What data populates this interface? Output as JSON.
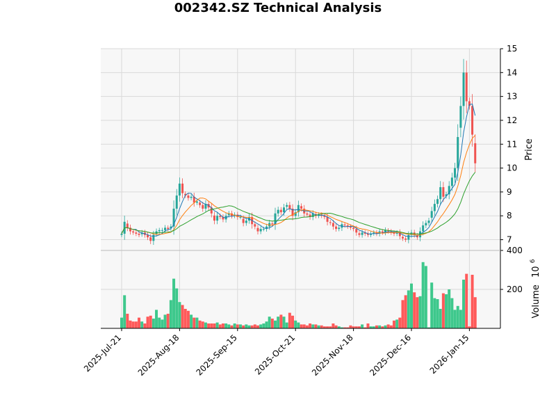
{
  "chart_data": {
    "type": "candlestick",
    "title": "002342.SZ Technical Analysis",
    "price_ylabel": "Price",
    "volume_ylabel": "Volume",
    "volume_multiplier_label": "10",
    "volume_multiplier_exp": "6",
    "price_ylim": [
      6.55,
      15.0
    ],
    "price_ticks": [
      7,
      8,
      9,
      10,
      11,
      12,
      13,
      14,
      15
    ],
    "volume_ylim": [
      0,
      400
    ],
    "volume_ticks": [
      200,
      400
    ],
    "x_ticks": [
      {
        "label": "2025-Jul-21",
        "index": 0
      },
      {
        "label": "2025-Aug-18",
        "index": 20
      },
      {
        "label": "2025-Sep-15",
        "index": 40
      },
      {
        "label": "2025-Oct-21",
        "index": 60
      },
      {
        "label": "2025-Nov-18",
        "index": 80
      },
      {
        "label": "2025-Dec-16",
        "index": 100
      },
      {
        "label": "2026-Jan-15",
        "index": 120
      }
    ],
    "colors": {
      "up": "#26a69a",
      "down": "#ef5350",
      "up_vol": "#3ec88c",
      "down_vol": "#ff5a5a",
      "ma_fast": "#1f77b4",
      "ma_mid": "#ff7f0e",
      "ma_slow": "#2ca02c",
      "panel_bg": "#f7f7f7",
      "grid": "#d9d9d9"
    },
    "closes": [
      7.25,
      7.75,
      7.5,
      7.35,
      7.3,
      7.25,
      7.2,
      7.3,
      7.2,
      7.1,
      6.95,
      7.2,
      7.35,
      7.4,
      7.4,
      7.5,
      7.45,
      7.55,
      8.3,
      8.85,
      9.35,
      8.95,
      8.85,
      8.75,
      8.8,
      8.55,
      8.6,
      8.45,
      8.3,
      8.5,
      8.35,
      8.1,
      7.8,
      8.0,
      7.95,
      7.85,
      8.0,
      8.1,
      8.0,
      8.05,
      7.95,
      7.95,
      7.7,
      7.8,
      7.95,
      7.65,
      7.55,
      7.35,
      7.45,
      7.45,
      7.55,
      7.7,
      7.65,
      8.1,
      8.25,
      8.15,
      8.35,
      8.45,
      8.3,
      8.0,
      8.15,
      8.45,
      8.3,
      8.1,
      8.05,
      7.95,
      8.1,
      8.0,
      8.05,
      8.0,
      7.95,
      7.75,
      7.7,
      7.55,
      7.45,
      7.5,
      7.65,
      7.6,
      7.55,
      7.5,
      7.45,
      7.3,
      7.2,
      7.3,
      7.25,
      7.2,
      7.25,
      7.3,
      7.25,
      7.35,
      7.3,
      7.4,
      7.35,
      7.3,
      7.25,
      7.3,
      7.15,
      7.05,
      7.0,
      7.2,
      7.3,
      7.2,
      7.1,
      7.35,
      7.6,
      7.7,
      7.8,
      8.2,
      8.5,
      8.7,
      9.2,
      8.8,
      8.9,
      9.25,
      9.6,
      10.0,
      11.3,
      12.6,
      14.0,
      12.8,
      12.6,
      11.4,
      10.2
    ],
    "volumes": [
      55,
      170,
      75,
      40,
      35,
      35,
      55,
      35,
      25,
      60,
      65,
      50,
      95,
      55,
      45,
      70,
      75,
      145,
      255,
      205,
      135,
      120,
      100,
      90,
      70,
      55,
      55,
      40,
      35,
      30,
      25,
      25,
      25,
      30,
      20,
      25,
      25,
      20,
      15,
      25,
      20,
      20,
      15,
      20,
      15,
      15,
      20,
      15,
      20,
      25,
      35,
      60,
      50,
      40,
      60,
      70,
      60,
      30,
      80,
      65,
      40,
      30,
      20,
      20,
      15,
      25,
      20,
      20,
      15,
      15,
      10,
      10,
      10,
      25,
      15,
      10,
      5,
      5,
      5,
      15,
      10,
      10,
      10,
      20,
      5,
      25,
      10,
      10,
      15,
      15,
      10,
      15,
      20,
      15,
      40,
      45,
      55,
      145,
      170,
      195,
      230,
      185,
      160,
      165,
      340,
      320,
      5,
      235,
      155,
      150,
      100,
      180,
      175,
      200,
      155,
      95,
      115,
      95,
      250,
      280,
      10,
      275,
      160
    ]
  }
}
